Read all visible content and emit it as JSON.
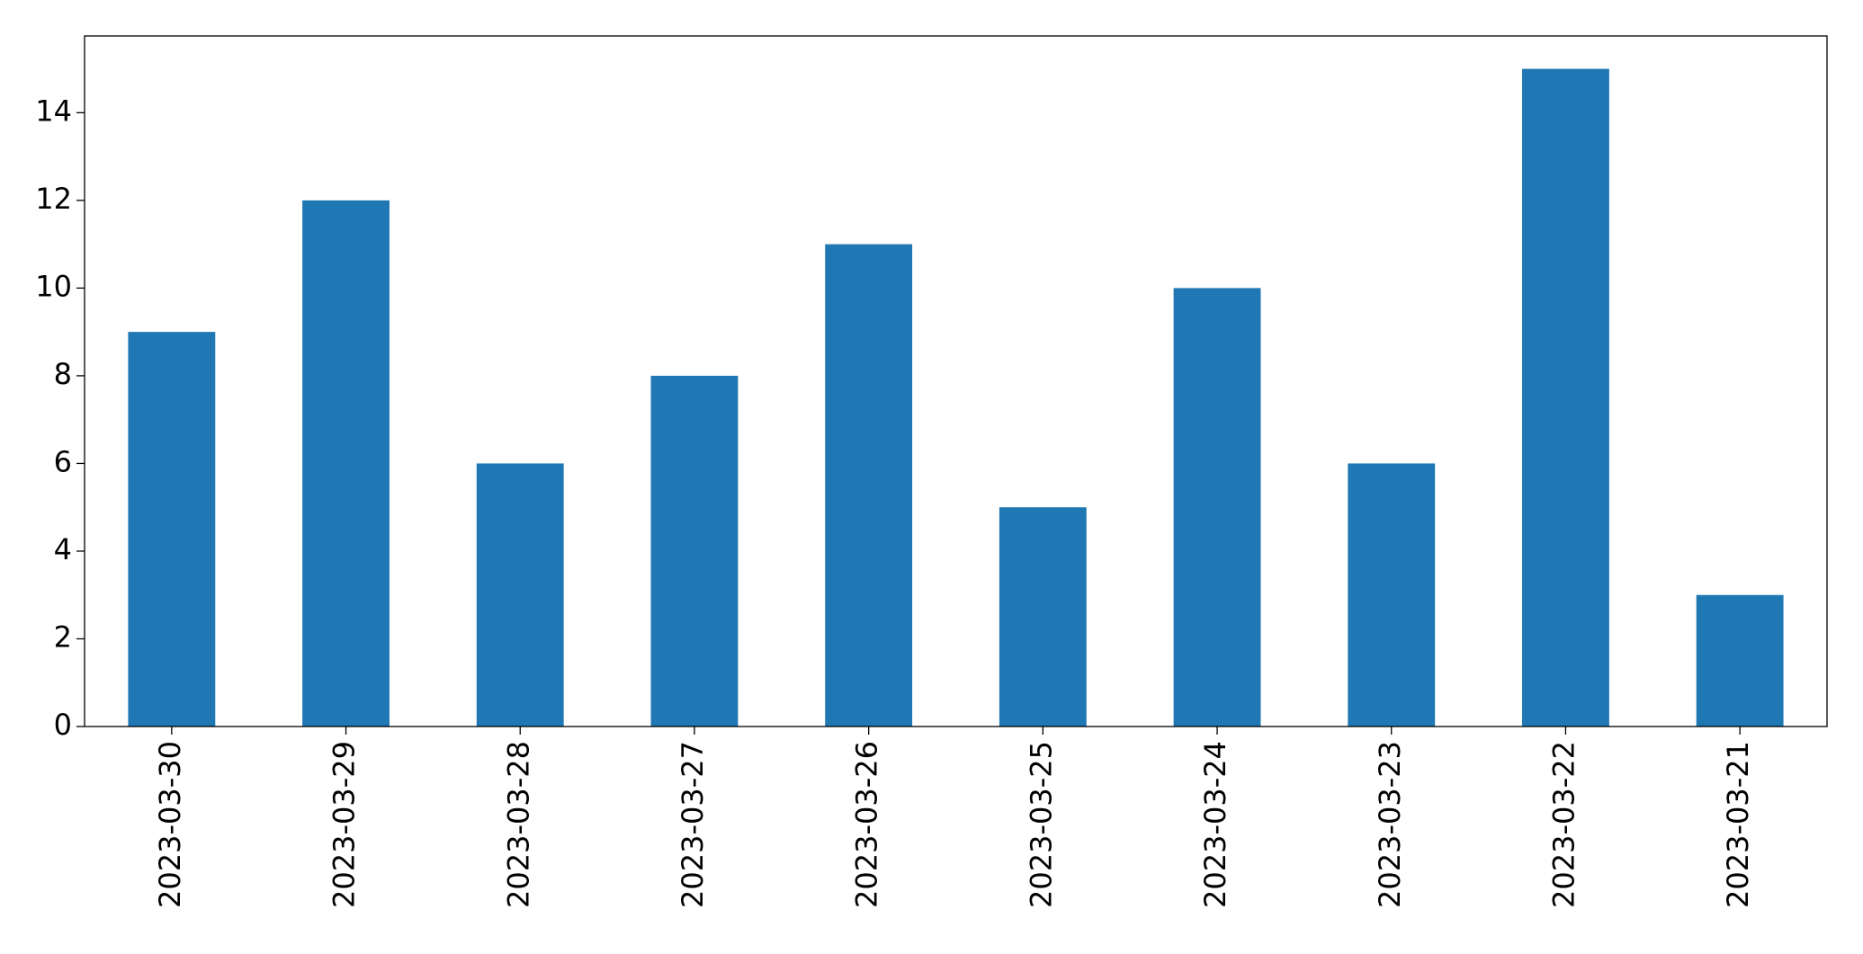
{
  "chart_data": {
    "type": "bar",
    "categories": [
      "2023-03-30",
      "2023-03-29",
      "2023-03-28",
      "2023-03-27",
      "2023-03-26",
      "2023-03-25",
      "2023-03-24",
      "2023-03-23",
      "2023-03-22",
      "2023-03-21"
    ],
    "values": [
      9,
      12,
      6,
      8,
      11,
      5,
      10,
      6,
      15,
      3
    ],
    "color": "#1f77b4",
    "ylim": [
      0,
      15.75
    ],
    "yticks": [
      0,
      2,
      4,
      6,
      8,
      10,
      12,
      14
    ],
    "grid": false
  }
}
